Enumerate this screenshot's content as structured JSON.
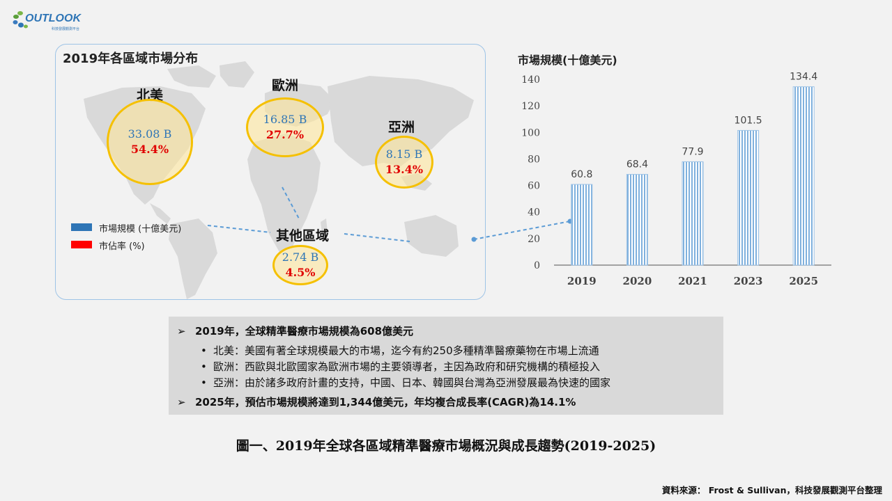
{
  "logo": {
    "name": "OUTLOOK",
    "tagline": "科技發展觀測平台"
  },
  "map": {
    "title": "2019年各區域市場分布",
    "regions": [
      {
        "name": "北美",
        "size": "33.08 B",
        "share": "54.4%"
      },
      {
        "name": "歐洲",
        "size": "16.85 B",
        "share": "27.7%"
      },
      {
        "name": "亞洲",
        "size": "8.15 B",
        "share": "13.4%"
      },
      {
        "name": "其他區域",
        "size": "2.74 B",
        "share": "4.5%"
      }
    ],
    "legend": [
      {
        "label": "市場規模 (十億美元)",
        "color": "#2e75b6"
      },
      {
        "label": "市佔率 (%)",
        "color": "#ff0000"
      }
    ]
  },
  "chart_data": {
    "type": "bar",
    "title": "市場規模(十億美元)",
    "categories": [
      "2019",
      "2020",
      "2021",
      "2023",
      "2025"
    ],
    "values": [
      60.8,
      68.4,
      77.9,
      101.5,
      134.4
    ],
    "data_labels": [
      "60.8",
      "68.4",
      "77.9",
      "101.5",
      "134.4"
    ],
    "ylim": [
      0,
      140
    ],
    "yticks": [
      0,
      20,
      40,
      60,
      80,
      100,
      120,
      140
    ],
    "xlabel": "",
    "ylabel": "",
    "grid": false,
    "bar_color": "#9dc3e6",
    "bar_pattern": "vertical-stripes"
  },
  "summary": {
    "point1": "2019年，全球精準醫療市場規模為608億美元",
    "sub": [
      "北美：美國有著全球規模最大的市場，迄今有約250多種精準醫療藥物在市場上流通",
      "歐洲：西歐與北歐國家為歐洲市場的主要領導者，主因為政府和研究機構的積極投入",
      "亞洲：由於諸多政府計畫的支持，中國、日本、韓國與台灣為亞洲發展最為快速的國家"
    ],
    "point2": "2025年，預估市場規模將達到1,344億美元，年均複合成長率(CAGR)為14.1%"
  },
  "caption": "圖一、2019年全球各區域精準醫療市場概況與成長趨勢(2019-2025)",
  "source": "資料來源： Frost & Sullivan，科技發展觀測平台整理"
}
